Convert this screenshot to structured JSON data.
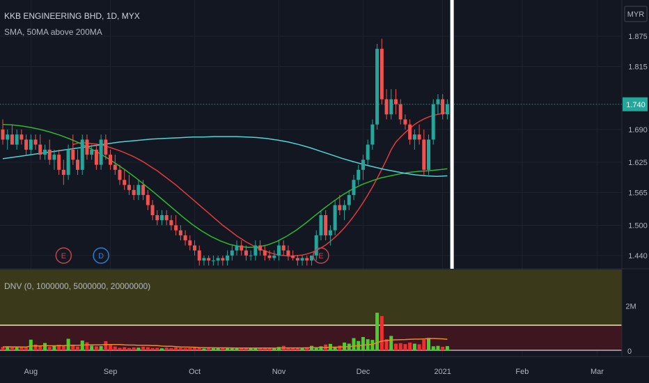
{
  "header": {
    "symbol_line": "KKB ENGINEERING BHD, 1D, MYX",
    "indicator_line": "SMA, 50MA above 200MA",
    "currency_button": "MYR"
  },
  "event_markers": [
    {
      "label": "E",
      "date_index": 13,
      "color": "#c2464d"
    },
    {
      "label": "D",
      "date_index": 21,
      "color": "#2a7fd4"
    },
    {
      "label": "E",
      "date_index": 68,
      "color": "#c2464d"
    }
  ],
  "chart_data": {
    "type": "candlestick",
    "title": "KKB ENGINEERING BHD, 1D, MYX",
    "price_axis": {
      "ticks": [
        "1.875",
        "1.815",
        "1.740",
        "1.690",
        "1.625",
        "1.565",
        "1.500",
        "1.440"
      ],
      "range": [
        1.415,
        1.94
      ],
      "last_price": "1.740",
      "last_price_value": 1.74
    },
    "time_axis": {
      "ticks": [
        "Aug",
        "Sep",
        "Oct",
        "Nov",
        "Dec",
        "2021",
        "Feb",
        "Mar"
      ],
      "tick_index": [
        6,
        23,
        41,
        59,
        77,
        94,
        111,
        127
      ]
    },
    "highlight_date_index": 96,
    "candles": [
      [
        1.69,
        1.71,
        1.66,
        1.67
      ],
      [
        1.67,
        1.69,
        1.65,
        1.68
      ],
      [
        1.68,
        1.7,
        1.66,
        1.66
      ],
      [
        1.66,
        1.69,
        1.65,
        1.68
      ],
      [
        1.68,
        1.69,
        1.66,
        1.67
      ],
      [
        1.67,
        1.68,
        1.64,
        1.65
      ],
      [
        1.65,
        1.68,
        1.64,
        1.67
      ],
      [
        1.67,
        1.68,
        1.65,
        1.66
      ],
      [
        1.66,
        1.68,
        1.63,
        1.64
      ],
      [
        1.64,
        1.66,
        1.63,
        1.65
      ],
      [
        1.65,
        1.67,
        1.62,
        1.63
      ],
      [
        1.63,
        1.65,
        1.61,
        1.64
      ],
      [
        1.64,
        1.65,
        1.6,
        1.61
      ],
      [
        1.61,
        1.63,
        1.58,
        1.6
      ],
      [
        1.6,
        1.66,
        1.59,
        1.65
      ],
      [
        1.65,
        1.68,
        1.62,
        1.63
      ],
      [
        1.63,
        1.65,
        1.6,
        1.61
      ],
      [
        1.61,
        1.68,
        1.6,
        1.67
      ],
      [
        1.67,
        1.68,
        1.63,
        1.64
      ],
      [
        1.64,
        1.66,
        1.63,
        1.65
      ],
      [
        1.65,
        1.66,
        1.61,
        1.62
      ],
      [
        1.62,
        1.68,
        1.61,
        1.67
      ],
      [
        1.67,
        1.68,
        1.63,
        1.64
      ],
      [
        1.64,
        1.65,
        1.61,
        1.62
      ],
      [
        1.62,
        1.64,
        1.6,
        1.61
      ],
      [
        1.61,
        1.62,
        1.58,
        1.59
      ],
      [
        1.59,
        1.61,
        1.57,
        1.58
      ],
      [
        1.58,
        1.6,
        1.56,
        1.57
      ],
      [
        1.57,
        1.58,
        1.55,
        1.56
      ],
      [
        1.56,
        1.59,
        1.55,
        1.58
      ],
      [
        1.58,
        1.59,
        1.55,
        1.56
      ],
      [
        1.56,
        1.57,
        1.53,
        1.54
      ],
      [
        1.54,
        1.55,
        1.51,
        1.52
      ],
      [
        1.52,
        1.53,
        1.5,
        1.51
      ],
      [
        1.51,
        1.53,
        1.5,
        1.52
      ],
      [
        1.52,
        1.53,
        1.5,
        1.51
      ],
      [
        1.51,
        1.52,
        1.49,
        1.5
      ],
      [
        1.5,
        1.52,
        1.48,
        1.49
      ],
      [
        1.49,
        1.5,
        1.47,
        1.48
      ],
      [
        1.48,
        1.49,
        1.46,
        1.47
      ],
      [
        1.47,
        1.48,
        1.45,
        1.46
      ],
      [
        1.46,
        1.47,
        1.44,
        1.45
      ],
      [
        1.45,
        1.46,
        1.42,
        1.43
      ],
      [
        1.43,
        1.44,
        1.42,
        1.435
      ],
      [
        1.435,
        1.44,
        1.42,
        1.43
      ],
      [
        1.43,
        1.44,
        1.42,
        1.43
      ],
      [
        1.43,
        1.44,
        1.42,
        1.435
      ],
      [
        1.435,
        1.44,
        1.42,
        1.43
      ],
      [
        1.43,
        1.45,
        1.42,
        1.44
      ],
      [
        1.44,
        1.46,
        1.43,
        1.45
      ],
      [
        1.45,
        1.47,
        1.44,
        1.46
      ],
      [
        1.46,
        1.47,
        1.44,
        1.45
      ],
      [
        1.45,
        1.46,
        1.43,
        1.44
      ],
      [
        1.44,
        1.45,
        1.43,
        1.44
      ],
      [
        1.44,
        1.47,
        1.43,
        1.46
      ],
      [
        1.46,
        1.47,
        1.44,
        1.45
      ],
      [
        1.45,
        1.46,
        1.43,
        1.44
      ],
      [
        1.44,
        1.45,
        1.43,
        1.435
      ],
      [
        1.435,
        1.45,
        1.43,
        1.44
      ],
      [
        1.44,
        1.47,
        1.43,
        1.46
      ],
      [
        1.46,
        1.47,
        1.44,
        1.45
      ],
      [
        1.45,
        1.46,
        1.43,
        1.44
      ],
      [
        1.44,
        1.45,
        1.43,
        1.435
      ],
      [
        1.435,
        1.44,
        1.42,
        1.43
      ],
      [
        1.43,
        1.44,
        1.42,
        1.435
      ],
      [
        1.435,
        1.44,
        1.42,
        1.43
      ],
      [
        1.43,
        1.44,
        1.42,
        1.44
      ],
      [
        1.44,
        1.49,
        1.43,
        1.48
      ],
      [
        1.48,
        1.53,
        1.47,
        1.52
      ],
      [
        1.52,
        1.53,
        1.47,
        1.48
      ],
      [
        1.48,
        1.5,
        1.46,
        1.49
      ],
      [
        1.49,
        1.55,
        1.48,
        1.54
      ],
      [
        1.54,
        1.56,
        1.52,
        1.53
      ],
      [
        1.53,
        1.55,
        1.51,
        1.54
      ],
      [
        1.54,
        1.57,
        1.53,
        1.56
      ],
      [
        1.56,
        1.6,
        1.55,
        1.59
      ],
      [
        1.59,
        1.62,
        1.58,
        1.61
      ],
      [
        1.61,
        1.64,
        1.59,
        1.63
      ],
      [
        1.63,
        1.67,
        1.62,
        1.66
      ],
      [
        1.66,
        1.71,
        1.65,
        1.7
      ],
      [
        1.7,
        1.86,
        1.69,
        1.85
      ],
      [
        1.85,
        1.87,
        1.74,
        1.75
      ],
      [
        1.75,
        1.77,
        1.71,
        1.72
      ],
      [
        1.72,
        1.77,
        1.71,
        1.75
      ],
      [
        1.75,
        1.77,
        1.72,
        1.74
      ],
      [
        1.74,
        1.75,
        1.7,
        1.71
      ],
      [
        1.71,
        1.72,
        1.69,
        1.7
      ],
      [
        1.7,
        1.71,
        1.66,
        1.67
      ],
      [
        1.67,
        1.69,
        1.65,
        1.68
      ],
      [
        1.68,
        1.7,
        1.66,
        1.67
      ],
      [
        1.67,
        1.69,
        1.6,
        1.61
      ],
      [
        1.61,
        1.68,
        1.6,
        1.67
      ],
      [
        1.67,
        1.75,
        1.66,
        1.74
      ],
      [
        1.74,
        1.76,
        1.72,
        1.75
      ],
      [
        1.75,
        1.76,
        1.71,
        1.72
      ],
      [
        1.72,
        1.75,
        1.71,
        1.74
      ]
    ],
    "series": [
      {
        "name": "SMA",
        "color": "#e23b3b",
        "values": [
          1.66,
          1.663,
          1.664,
          1.663,
          1.662,
          1.661,
          1.659,
          1.657,
          1.654,
          1.651,
          1.648,
          1.644,
          1.64,
          1.636,
          1.631,
          1.626,
          1.62,
          1.614,
          1.608,
          1.601,
          1.594,
          1.587,
          1.58,
          1.572,
          1.564,
          1.556,
          1.548,
          1.54,
          1.532,
          1.524,
          1.516,
          1.508,
          1.5,
          1.493,
          1.486,
          1.479,
          1.473,
          1.467,
          1.462,
          1.457,
          1.453,
          1.449,
          1.446,
          1.443,
          1.441,
          1.44,
          1.439,
          1.439,
          1.44,
          1.441,
          1.443,
          1.446,
          1.45,
          1.455,
          1.461,
          1.468,
          1.476,
          1.485,
          1.495,
          1.506,
          1.518,
          1.531,
          1.545,
          1.56,
          1.576,
          1.593,
          1.611,
          1.63,
          1.65,
          1.665,
          1.675,
          1.684,
          1.692,
          1.7,
          1.706,
          1.711,
          1.715,
          1.718,
          1.72,
          1.722,
          1.724
        ]
      },
      {
        "name": "50MA",
        "color": "#2eb82e",
        "values": [
          1.7,
          1.699,
          1.697,
          1.694,
          1.69,
          1.685,
          1.679,
          1.672,
          1.664,
          1.655,
          1.645,
          1.634,
          1.622,
          1.609,
          1.595,
          1.58,
          1.565,
          1.549,
          1.533,
          1.517,
          1.502,
          1.489,
          1.478,
          1.469,
          1.462,
          1.458,
          1.456,
          1.457,
          1.461,
          1.468,
          1.478,
          1.49,
          1.504,
          1.519,
          1.534,
          1.548,
          1.561,
          1.572,
          1.581,
          1.588,
          1.594,
          1.598,
          1.602,
          1.605,
          1.607,
          1.608,
          1.61,
          1.612
        ]
      },
      {
        "name": "200MA",
        "color": "#4fd6d6",
        "values": [
          1.632,
          1.635,
          1.638,
          1.641,
          1.644,
          1.647,
          1.65,
          1.653,
          1.656,
          1.659,
          1.662,
          1.665,
          1.667,
          1.669,
          1.671,
          1.672,
          1.673,
          1.674,
          1.675,
          1.675,
          1.676,
          1.676,
          1.676,
          1.675,
          1.674,
          1.672,
          1.669,
          1.665,
          1.66,
          1.654,
          1.647,
          1.64,
          1.633,
          1.627,
          1.621,
          1.616,
          1.611,
          1.607,
          1.603,
          1.6,
          1.598,
          1.597,
          1.598
        ]
      }
    ],
    "volume_panel": {
      "title": "DNV (0, 1000000, 5000000, 20000000)",
      "ticks": [
        "2M",
        "0"
      ],
      "range": [
        0,
        3500000
      ],
      "volumes": [
        150000,
        170000,
        140000,
        160000,
        130000,
        120000,
        480000,
        260000,
        180000,
        330000,
        150000,
        190000,
        250000,
        210000,
        520000,
        210000,
        170000,
        440000,
        360000,
        210000,
        180000,
        190000,
        410000,
        230000,
        170000,
        110000,
        140000,
        100000,
        130000,
        120000,
        160000,
        140000,
        100000,
        110000,
        90000,
        120000,
        100000,
        130000,
        110000,
        90000,
        100000,
        110000,
        120000,
        80000,
        100000,
        90000,
        110000,
        100000,
        120000,
        90000,
        80000,
        100000,
        110000,
        90000,
        120000,
        100000,
        90000,
        100000,
        80000,
        150000,
        200000,
        120000,
        100000,
        110000,
        90000,
        130000,
        200000,
        140000,
        180000,
        260000,
        290000,
        160000,
        210000,
        350000,
        300000,
        550000,
        420000,
        600000,
        500000,
        470000,
        1700000,
        1550000,
        500000,
        650000,
        300000,
        320000,
        280000,
        350000,
        300000,
        270000,
        480000,
        560000,
        180000,
        200000,
        160000,
        190000
      ]
    }
  }
}
